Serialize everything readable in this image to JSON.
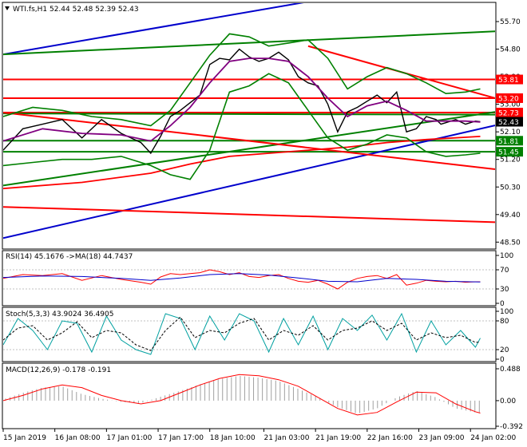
{
  "chart_data": [
    {
      "type": "line",
      "panel": "price",
      "title": "WTI.fs,H1  52.44 52.48 52.39 52.43",
      "symbol_icon": "triangle-down-icon",
      "y_ticks": [
        "55.70",
        "54.80",
        "53.90",
        "53.00",
        "52.10",
        "51.20",
        "50.30",
        "49.40",
        "48.50"
      ],
      "ylim": [
        48.3,
        56.3
      ],
      "price_labels": [
        {
          "text": "53.81",
          "value": 53.81,
          "color": "#ff0000"
        },
        {
          "text": "53.20",
          "value": 53.2,
          "color": "#ff0000"
        },
        {
          "text": "52.73",
          "value": 52.73,
          "color": "#ff0000"
        },
        {
          "text": "52.43",
          "value": 52.43,
          "color": "#000000"
        },
        {
          "text": "51.81",
          "value": 51.81,
          "color": "#008000"
        },
        {
          "text": "51.45",
          "value": 51.45,
          "color": "#008000"
        }
      ],
      "horizontal_levels": [
        {
          "value": 53.81,
          "color": "#ff0000"
        },
        {
          "value": 53.2,
          "color": "#ff0000"
        },
        {
          "value": 52.73,
          "color": "#ff0000"
        },
        {
          "value": 51.81,
          "color": "#008000"
        },
        {
          "value": 51.45,
          "color": "#008000"
        }
      ],
      "trend_lines": [
        {
          "color": "#0000cc",
          "from": [
            0,
            54.63
          ],
          "to": [
            71,
            56.6
          ]
        },
        {
          "color": "#0000cc",
          "from": [
            0,
            48.63
          ],
          "to": [
            100,
            52.31
          ]
        },
        {
          "color": "#008000",
          "from": [
            0,
            54.63
          ],
          "to": [
            100,
            55.38
          ]
        },
        {
          "color": "#008000",
          "from": [
            0,
            50.35
          ],
          "to": [
            100,
            52.75
          ]
        },
        {
          "color": "#008000",
          "from": [
            0,
            52.7
          ],
          "to": [
            100,
            52.66
          ]
        },
        {
          "color": "#ff0000",
          "from": [
            0,
            52.73
          ],
          "to": [
            100,
            50.88
          ]
        },
        {
          "color": "#ff0000",
          "from": [
            0,
            49.65
          ],
          "to": [
            100,
            49.15
          ]
        },
        {
          "color": "#ff0000",
          "from": [
            62,
            54.9
          ],
          "to": [
            100,
            53.2
          ]
        }
      ],
      "series": [
        {
          "name": "close",
          "color": "#000000",
          "x": [
            0,
            4,
            8,
            12,
            16,
            20,
            24,
            28,
            30,
            32,
            34,
            36,
            38,
            40,
            42,
            44,
            46,
            48,
            50,
            52,
            54,
            56,
            58,
            60,
            62,
            64,
            66,
            68,
            70,
            72,
            74,
            76,
            78,
            80,
            82,
            84,
            86,
            88,
            89,
            90,
            92,
            94,
            96,
            97
          ],
          "values": [
            51.5,
            52.2,
            52.35,
            52.5,
            51.9,
            52.5,
            52.05,
            51.75,
            51.4,
            51.95,
            52.6,
            52.8,
            53.05,
            53.3,
            54.3,
            54.5,
            54.45,
            54.8,
            54.55,
            54.4,
            54.5,
            54.7,
            54.45,
            53.9,
            53.7,
            53.6,
            53.0,
            52.1,
            52.75,
            52.9,
            53.1,
            53.3,
            53.05,
            53.4,
            52.1,
            52.2,
            52.6,
            52.5,
            52.35,
            52.4,
            52.5,
            52.35,
            52.45,
            52.43
          ]
        },
        {
          "name": "ma",
          "color": "#800080",
          "x": [
            0,
            8,
            16,
            24,
            30,
            34,
            38,
            42,
            46,
            50,
            54,
            58,
            62,
            66,
            70,
            74,
            78,
            82,
            86,
            90,
            94,
            97
          ],
          "values": [
            51.8,
            52.2,
            52.05,
            52.0,
            51.8,
            52.3,
            52.9,
            53.7,
            54.4,
            54.5,
            54.5,
            54.4,
            53.9,
            53.2,
            52.6,
            52.95,
            53.1,
            52.8,
            52.45,
            52.45,
            52.45,
            52.42
          ]
        },
        {
          "name": "ma-slow",
          "color": "#ff0000",
          "x": [
            0,
            16,
            30,
            38,
            46,
            54,
            62,
            70,
            78,
            86,
            97
          ],
          "values": [
            50.25,
            50.45,
            50.75,
            51.05,
            51.3,
            51.4,
            51.5,
            51.6,
            51.75,
            51.85,
            51.95
          ]
        },
        {
          "name": "bb-upper",
          "color": "#008000",
          "x": [
            0,
            6,
            12,
            18,
            24,
            30,
            34,
            38,
            42,
            46,
            50,
            54,
            58,
            62,
            66,
            70,
            74,
            78,
            82,
            86,
            90,
            94,
            97
          ],
          "values": [
            52.6,
            52.9,
            52.8,
            52.6,
            52.5,
            52.3,
            52.8,
            53.7,
            54.6,
            55.3,
            55.2,
            54.9,
            55.0,
            55.1,
            54.5,
            53.5,
            53.9,
            54.2,
            54.0,
            53.7,
            53.35,
            53.4,
            53.5
          ]
        },
        {
          "name": "bb-lower",
          "color": "#008000",
          "x": [
            0,
            6,
            12,
            18,
            24,
            30,
            34,
            38,
            42,
            46,
            50,
            54,
            58,
            62,
            66,
            70,
            74,
            78,
            82,
            86,
            90,
            94,
            97
          ],
          "values": [
            51.0,
            51.1,
            51.2,
            51.2,
            51.3,
            51.0,
            50.7,
            50.55,
            51.5,
            53.4,
            53.6,
            54.0,
            53.7,
            52.8,
            51.9,
            51.5,
            51.7,
            52.0,
            51.9,
            51.45,
            51.3,
            51.35,
            51.4
          ]
        }
      ]
    },
    {
      "type": "line",
      "panel": "rsi",
      "title": "RSI(14) 45.1676  ->MA(18) 44.7437",
      "y_ticks": [
        "100",
        "70",
        "30",
        "0"
      ],
      "ylim": [
        0,
        100
      ],
      "series": [
        {
          "name": "RSI",
          "color": "#ff0000",
          "x": [
            0,
            4,
            8,
            12,
            16,
            20,
            24,
            28,
            30,
            32,
            34,
            36,
            38,
            40,
            42,
            44,
            46,
            48,
            50,
            52,
            54,
            56,
            58,
            60,
            62,
            64,
            66,
            68,
            70,
            72,
            74,
            76,
            78,
            80,
            82,
            84,
            86,
            88,
            90,
            92,
            94,
            96,
            97
          ],
          "values": [
            52,
            60,
            58,
            62,
            48,
            58,
            50,
            44,
            40,
            55,
            62,
            60,
            62,
            64,
            70,
            66,
            60,
            64,
            56,
            54,
            58,
            60,
            52,
            46,
            44,
            48,
            40,
            30,
            44,
            52,
            56,
            58,
            52,
            60,
            38,
            42,
            48,
            46,
            45,
            46,
            44,
            45,
            45
          ]
        },
        {
          "name": "MA",
          "color": "#0000cc",
          "x": [
            0,
            8,
            16,
            24,
            30,
            36,
            42,
            48,
            54,
            60,
            66,
            72,
            78,
            84,
            90,
            97
          ],
          "values": [
            54,
            57,
            56,
            52,
            48,
            53,
            60,
            62,
            59,
            53,
            46,
            45,
            52,
            50,
            46,
            44.7
          ]
        }
      ]
    },
    {
      "type": "line",
      "panel": "stochastic",
      "title": "Stoch(5,3,3) 43.9024 36.4905",
      "y_ticks": [
        "100",
        "80",
        "20",
        "0"
      ],
      "ylim": [
        0,
        100
      ],
      "series": [
        {
          "name": "%K",
          "color": "#00a0a0",
          "x": [
            0,
            3,
            6,
            9,
            12,
            15,
            18,
            21,
            24,
            27,
            30,
            33,
            36,
            39,
            42,
            45,
            48,
            51,
            54,
            57,
            60,
            63,
            66,
            69,
            72,
            75,
            78,
            81,
            84,
            87,
            90,
            93,
            96,
            97
          ],
          "values": [
            30,
            85,
            60,
            20,
            80,
            75,
            15,
            90,
            40,
            20,
            10,
            95,
            85,
            20,
            90,
            40,
            95,
            80,
            15,
            85,
            30,
            90,
            20,
            85,
            60,
            92,
            40,
            95,
            15,
            80,
            30,
            60,
            25,
            44
          ]
        },
        {
          "name": "%D",
          "color": "#000000",
          "x": [
            0,
            3,
            6,
            9,
            12,
            15,
            18,
            21,
            24,
            27,
            30,
            33,
            36,
            39,
            42,
            45,
            48,
            51,
            54,
            57,
            60,
            63,
            66,
            69,
            72,
            75,
            78,
            81,
            84,
            87,
            90,
            93,
            96,
            97
          ],
          "values": [
            40,
            65,
            70,
            40,
            55,
            78,
            45,
            60,
            55,
            30,
            18,
            60,
            88,
            45,
            60,
            55,
            75,
            85,
            40,
            60,
            50,
            70,
            40,
            60,
            65,
            80,
            60,
            75,
            40,
            55,
            45,
            50,
            35,
            36
          ]
        }
      ]
    },
    {
      "type": "bar",
      "panel": "macd",
      "title": "MACD(12,26,9) -0.178 -0.191",
      "y_ticks": [
        "0.488",
        "0.00",
        "-0.392"
      ],
      "ylim": [
        -0.392,
        0.488
      ],
      "histogram": {
        "name": "MACD",
        "color": "#a0a0a0",
        "x": [
          0,
          4,
          8,
          12,
          16,
          20,
          24,
          28,
          32,
          36,
          40,
          44,
          48,
          52,
          56,
          60,
          64,
          68,
          72,
          76,
          80,
          84,
          88,
          92,
          96
        ],
        "values": [
          0.02,
          0.12,
          0.2,
          0.22,
          0.1,
          0.03,
          -0.02,
          -0.04,
          0.06,
          0.15,
          0.25,
          0.33,
          0.38,
          0.35,
          0.3,
          0.18,
          0.05,
          -0.1,
          -0.2,
          -0.12,
          0.05,
          0.15,
          0.05,
          -0.12,
          -0.18
        ]
      },
      "series": [
        {
          "name": "Signal",
          "color": "#ff0000",
          "x": [
            0,
            4,
            8,
            12,
            16,
            20,
            24,
            28,
            32,
            36,
            40,
            44,
            48,
            52,
            56,
            60,
            64,
            68,
            72,
            76,
            80,
            84,
            88,
            92,
            96,
            97
          ],
          "values": [
            0.0,
            0.08,
            0.18,
            0.24,
            0.2,
            0.08,
            0.0,
            -0.05,
            0.0,
            0.12,
            0.24,
            0.34,
            0.4,
            0.38,
            0.32,
            0.22,
            0.05,
            -0.12,
            -0.22,
            -0.18,
            -0.02,
            0.13,
            0.12,
            -0.05,
            -0.17,
            -0.19
          ]
        }
      ]
    }
  ],
  "x_axis_labels": [
    "15 Jan 2019",
    "16 Jan 08:00",
    "17 Jan 01:00",
    "17 Jan 17:00",
    "18 Jan 10:00",
    "21 Jan 03:00",
    "21 Jan 19:00",
    "22 Jan 16:00",
    "23 Jan 09:00",
    "24 Jan 02:00"
  ],
  "x_axis_positions": [
    0,
    10.5,
    21,
    31.5,
    42,
    53,
    63.5,
    74,
    84.5,
    95
  ]
}
